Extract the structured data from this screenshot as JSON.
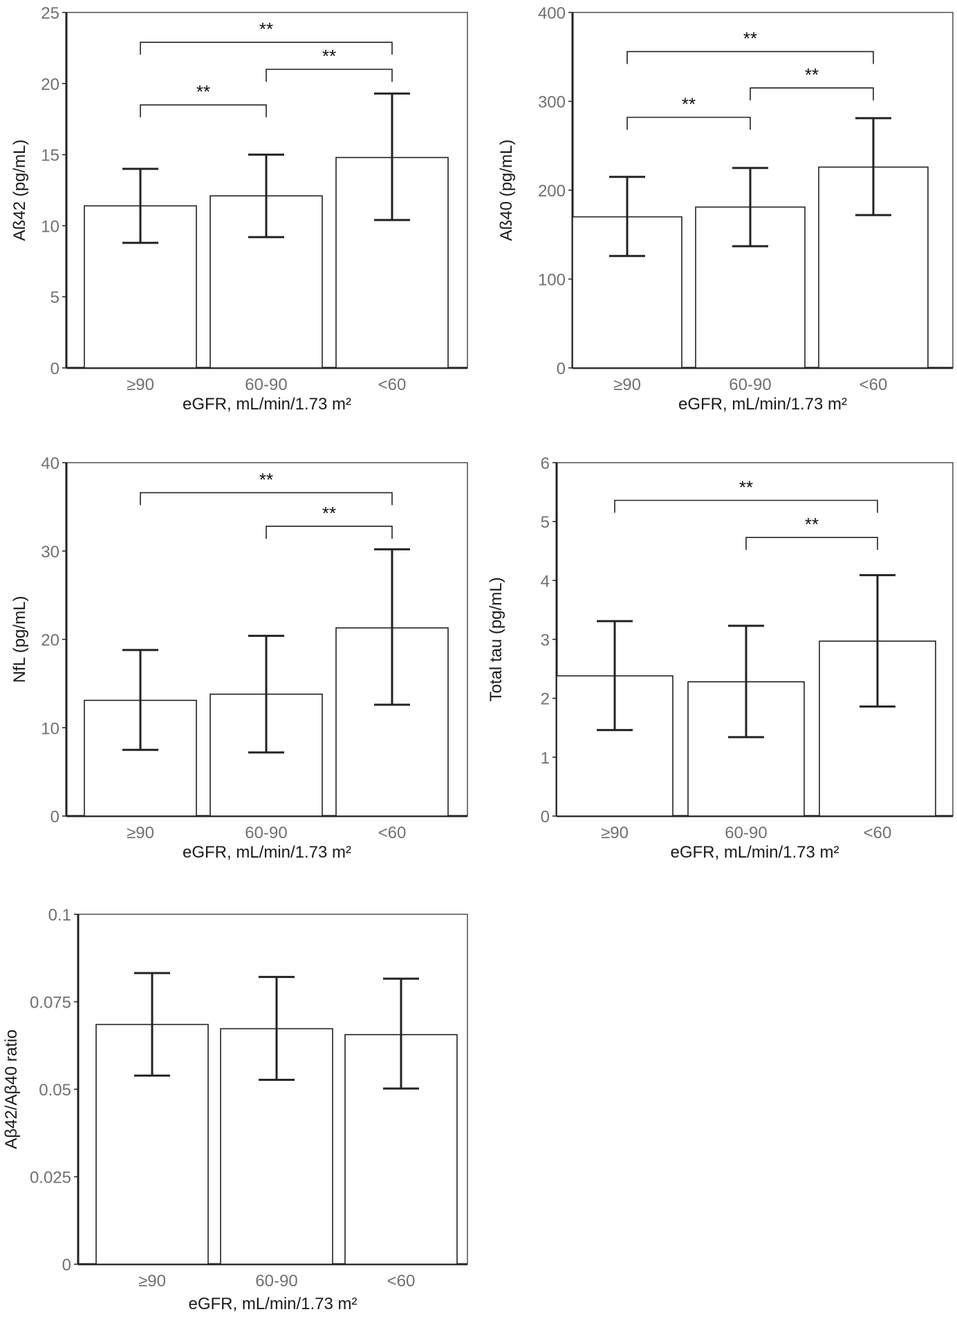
{
  "chart_data": [
    {
      "type": "bar",
      "ylabel": "Aß42 (pg/mL)",
      "xlabel": "eGFR, mL/min/1.73 m²",
      "categories": [
        "≥90",
        "60-90",
        "<60"
      ],
      "values": [
        11.4,
        12.1,
        14.8
      ],
      "error_low": [
        8.8,
        9.2,
        10.4
      ],
      "error_high": [
        14.0,
        15.0,
        19.3
      ],
      "ylim": [
        0,
        25
      ],
      "yticks": [
        0,
        5,
        10,
        15,
        20,
        25
      ],
      "ytick_labels": [
        "0",
        "5",
        "10",
        "15",
        "20",
        "25"
      ],
      "significance": [
        {
          "from": 0,
          "to": 1,
          "y": 18.5,
          "label": "**"
        },
        {
          "from": 0,
          "to": 2,
          "y": 22.9,
          "label": "**"
        },
        {
          "from": 1,
          "to": 2,
          "y": 21.0,
          "label": "**"
        }
      ]
    },
    {
      "type": "bar",
      "ylabel": "Aß40 (pg/mL)",
      "xlabel": "eGFR, mL/min/1.73 m²",
      "categories": [
        "≥90",
        "60-90",
        "<60"
      ],
      "values": [
        170,
        181,
        226
      ],
      "error_low": [
        126,
        137,
        172
      ],
      "error_high": [
        215,
        225,
        281
      ],
      "ylim": [
        0,
        400
      ],
      "yticks": [
        0,
        100,
        200,
        300,
        400
      ],
      "ytick_labels": [
        "0",
        "100",
        "200",
        "300",
        "400"
      ],
      "significance": [
        {
          "from": 0,
          "to": 1,
          "y": 282,
          "label": "**"
        },
        {
          "from": 0,
          "to": 2,
          "y": 356,
          "label": "**"
        },
        {
          "from": 1,
          "to": 2,
          "y": 315,
          "label": "**"
        }
      ]
    },
    {
      "type": "bar",
      "ylabel": "NfL (pg/mL)",
      "xlabel": "eGFR, mL/min/1.73 m²",
      "categories": [
        "≥90",
        "60-90",
        "<60"
      ],
      "values": [
        13.1,
        13.8,
        21.3
      ],
      "error_low": [
        7.5,
        7.2,
        12.6
      ],
      "error_high": [
        18.8,
        20.4,
        30.2
      ],
      "ylim": [
        0,
        40
      ],
      "yticks": [
        0,
        10,
        20,
        30,
        40
      ],
      "ytick_labels": [
        "0",
        "10",
        "20",
        "30",
        "40"
      ],
      "significance": [
        {
          "from": 0,
          "to": 2,
          "y": 36.6,
          "label": "**"
        },
        {
          "from": 1,
          "to": 2,
          "y": 32.8,
          "label": "**"
        }
      ]
    },
    {
      "type": "bar",
      "ylabel": "Total tau (pg/mL)",
      "xlabel": "eGFR, mL/min/1.73 m²",
      "categories": [
        "≥90",
        "60-90",
        "<60"
      ],
      "values": [
        2.38,
        2.28,
        2.97
      ],
      "error_low": [
        1.46,
        1.34,
        1.86
      ],
      "error_high": [
        3.31,
        3.23,
        4.09
      ],
      "ylim": [
        0,
        6
      ],
      "yticks": [
        0,
        1,
        2,
        3,
        4,
        5,
        6
      ],
      "ytick_labels": [
        "0",
        "1",
        "2",
        "3",
        "4",
        "5",
        "6"
      ],
      "significance": [
        {
          "from": 0,
          "to": 2,
          "y": 5.36,
          "label": "**"
        },
        {
          "from": 1,
          "to": 2,
          "y": 4.73,
          "label": "**"
        }
      ]
    },
    {
      "type": "bar",
      "ylabel": "Aβ42/Aβ40 ratio",
      "xlabel": "eGFR, mL/min/1.73 m²",
      "categories": [
        "≥90",
        "60-90",
        "<60"
      ],
      "values": [
        0.0685,
        0.0673,
        0.0656
      ],
      "error_low": [
        0.0539,
        0.0527,
        0.0502
      ],
      "error_high": [
        0.0832,
        0.0821,
        0.0816
      ],
      "ylim": [
        0,
        0.1
      ],
      "yticks": [
        0,
        0.025,
        0.05,
        0.075,
        0.1
      ],
      "ytick_labels": [
        "0",
        "0.025",
        "0.05",
        "0.075",
        "0.1"
      ],
      "significance": []
    }
  ]
}
